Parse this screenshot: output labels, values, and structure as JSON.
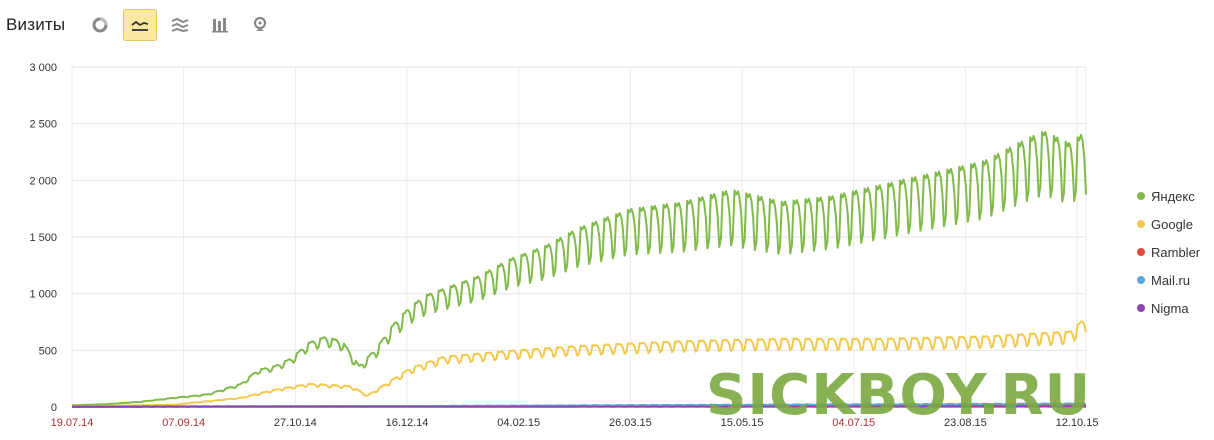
{
  "header": {
    "title": "Визиты",
    "buttons": [
      {
        "name": "pie-chart-icon",
        "active": false
      },
      {
        "name": "line-chart-icon",
        "active": true
      },
      {
        "name": "area-chart-icon",
        "active": false
      },
      {
        "name": "column-chart-icon",
        "active": false
      },
      {
        "name": "map-icon",
        "active": false
      }
    ]
  },
  "watermark": "SICKBOY.RU",
  "chart_data": {
    "type": "line",
    "ylim": [
      0,
      3000
    ],
    "yticks": [
      "0",
      "500",
      "1 000",
      "1 500",
      "2 000",
      "2 500",
      "3 000"
    ],
    "ytick_values": [
      0,
      500,
      1000,
      1500,
      2000,
      2500,
      3000
    ],
    "xticks": [
      {
        "label": "19.07.14",
        "color": "#b03030"
      },
      {
        "label": "07.09.14",
        "color": "#b03030"
      },
      {
        "label": "27.10.14",
        "color": "#333333"
      },
      {
        "label": "16.12.14",
        "color": "#333333"
      },
      {
        "label": "04.02.15",
        "color": "#333333"
      },
      {
        "label": "26.03.15",
        "color": "#333333"
      },
      {
        "label": "15.05.15",
        "color": "#333333"
      },
      {
        "label": "04.07.15",
        "color": "#b03030"
      },
      {
        "label": "23.08.15",
        "color": "#333333"
      },
      {
        "label": "12.10.15",
        "color": "#333333"
      }
    ],
    "x_start": "19.07.14",
    "x_end": "29.10.15",
    "grid": true,
    "legend_position": "right",
    "series": [
      {
        "name": "Яндекс",
        "color": "#80bb4a",
        "anchors": [
          [
            0,
            15
          ],
          [
            20,
            25
          ],
          [
            40,
            45
          ],
          [
            60,
            80
          ],
          [
            80,
            110
          ],
          [
            100,
            200
          ],
          [
            110,
            320
          ],
          [
            120,
            350
          ],
          [
            130,
            420
          ],
          [
            140,
            550
          ],
          [
            150,
            600
          ],
          [
            160,
            560
          ],
          [
            170,
            350
          ],
          [
            180,
            500
          ],
          [
            190,
            700
          ],
          [
            200,
            850
          ],
          [
            210,
            950
          ],
          [
            220,
            1000
          ],
          [
            240,
            1100
          ],
          [
            260,
            1250
          ],
          [
            280,
            1350
          ],
          [
            300,
            1500
          ],
          [
            330,
            1650
          ],
          [
            360,
            1700
          ],
          [
            390,
            1800
          ],
          [
            420,
            1700
          ],
          [
            450,
            1750
          ],
          [
            480,
            1850
          ],
          [
            510,
            1950
          ],
          [
            540,
            2050
          ],
          [
            560,
            2200
          ],
          [
            575,
            2300
          ],
          [
            590,
            2200
          ],
          [
            600,
            2300
          ]
        ],
        "amp": [
          [
            0,
            0.05
          ],
          [
            100,
            0.22
          ],
          [
            200,
            0.35
          ],
          [
            300,
            0.45
          ],
          [
            400,
            0.55
          ],
          [
            500,
            0.5
          ],
          [
            600,
            0.48
          ]
        ]
      },
      {
        "name": "Google",
        "color": "#f2c94c",
        "anchors": [
          [
            0,
            5
          ],
          [
            60,
            20
          ],
          [
            100,
            80
          ],
          [
            120,
            150
          ],
          [
            140,
            200
          ],
          [
            165,
            180
          ],
          [
            175,
            100
          ],
          [
            200,
            330
          ],
          [
            220,
            430
          ],
          [
            260,
            480
          ],
          [
            300,
            520
          ],
          [
            360,
            560
          ],
          [
            420,
            580
          ],
          [
            480,
            580
          ],
          [
            540,
            600
          ],
          [
            590,
            640
          ],
          [
            600,
            760
          ]
        ],
        "amp": [
          [
            0,
            0.05
          ],
          [
            100,
            0.2
          ],
          [
            200,
            0.3
          ],
          [
            400,
            0.35
          ],
          [
            600,
            0.35
          ]
        ]
      },
      {
        "name": "Rambler",
        "color": "#e14b3b",
        "anchors": [
          [
            0,
            5
          ],
          [
            200,
            8
          ],
          [
            300,
            12
          ],
          [
            400,
            18
          ],
          [
            500,
            16
          ],
          [
            600,
            15
          ]
        ],
        "amp": [
          [
            0,
            0.4
          ],
          [
            600,
            0.4
          ]
        ]
      },
      {
        "name": "Mail.ru",
        "color": "#5aa7d8",
        "anchors": [
          [
            0,
            3
          ],
          [
            200,
            8
          ],
          [
            300,
            14
          ],
          [
            400,
            20
          ],
          [
            500,
            25
          ],
          [
            600,
            30
          ]
        ],
        "amp": [
          [
            0,
            0.4
          ],
          [
            600,
            0.4
          ]
        ]
      },
      {
        "name": "Nigma",
        "color": "#8e44ad",
        "anchors": [
          [
            0,
            1
          ],
          [
            300,
            3
          ],
          [
            600,
            4
          ]
        ],
        "amp": [
          [
            0,
            0.4
          ],
          [
            600,
            0.4
          ]
        ]
      }
    ]
  }
}
